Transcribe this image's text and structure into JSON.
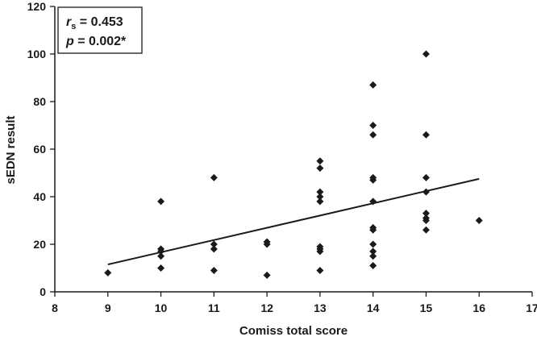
{
  "chart_data": {
    "type": "scatter",
    "xlabel": "Comiss total score",
    "ylabel": "sEDN result",
    "xlim": [
      8,
      17
    ],
    "ylim": [
      0,
      120
    ],
    "xticks": [
      8,
      9,
      10,
      11,
      12,
      13,
      14,
      15,
      16,
      17
    ],
    "yticks": [
      0,
      20,
      40,
      60,
      80,
      100,
      120
    ],
    "grid": false,
    "marker": "diamond",
    "annotation": {
      "r_symbol": "r",
      "r_subscript": "s",
      "r_value": " = 0.453",
      "p_symbol": "p",
      "p_value": " = 0.002*",
      "placement": "top-left"
    },
    "points": [
      {
        "x": 9,
        "y": 8
      },
      {
        "x": 10,
        "y": 38
      },
      {
        "x": 10,
        "y": 18
      },
      {
        "x": 10,
        "y": 17
      },
      {
        "x": 10,
        "y": 15
      },
      {
        "x": 10,
        "y": 10
      },
      {
        "x": 11,
        "y": 48
      },
      {
        "x": 11,
        "y": 20
      },
      {
        "x": 11,
        "y": 18
      },
      {
        "x": 11,
        "y": 9
      },
      {
        "x": 12,
        "y": 21
      },
      {
        "x": 12,
        "y": 20
      },
      {
        "x": 12,
        "y": 7
      },
      {
        "x": 13,
        "y": 55
      },
      {
        "x": 13,
        "y": 52
      },
      {
        "x": 13,
        "y": 42
      },
      {
        "x": 13,
        "y": 40
      },
      {
        "x": 13,
        "y": 38
      },
      {
        "x": 13,
        "y": 19
      },
      {
        "x": 13,
        "y": 18
      },
      {
        "x": 13,
        "y": 17
      },
      {
        "x": 13,
        "y": 9
      },
      {
        "x": 14,
        "y": 87
      },
      {
        "x": 14,
        "y": 70
      },
      {
        "x": 14,
        "y": 66
      },
      {
        "x": 14,
        "y": 48
      },
      {
        "x": 14,
        "y": 47
      },
      {
        "x": 14,
        "y": 38
      },
      {
        "x": 14,
        "y": 27
      },
      {
        "x": 14,
        "y": 26
      },
      {
        "x": 14,
        "y": 20
      },
      {
        "x": 14,
        "y": 17
      },
      {
        "x": 14,
        "y": 15
      },
      {
        "x": 14,
        "y": 11
      },
      {
        "x": 15,
        "y": 100
      },
      {
        "x": 15,
        "y": 66
      },
      {
        "x": 15,
        "y": 48
      },
      {
        "x": 15,
        "y": 42
      },
      {
        "x": 15,
        "y": 33
      },
      {
        "x": 15,
        "y": 31
      },
      {
        "x": 15,
        "y": 30
      },
      {
        "x": 15,
        "y": 26
      },
      {
        "x": 16,
        "y": 30
      }
    ],
    "trendline": {
      "x": [
        9,
        16
      ],
      "y": [
        11.5,
        47.5
      ]
    },
    "colors": {
      "marker": "#1a1a1a",
      "line": "#1a1a1a",
      "axis": "#1a1a1a"
    }
  }
}
